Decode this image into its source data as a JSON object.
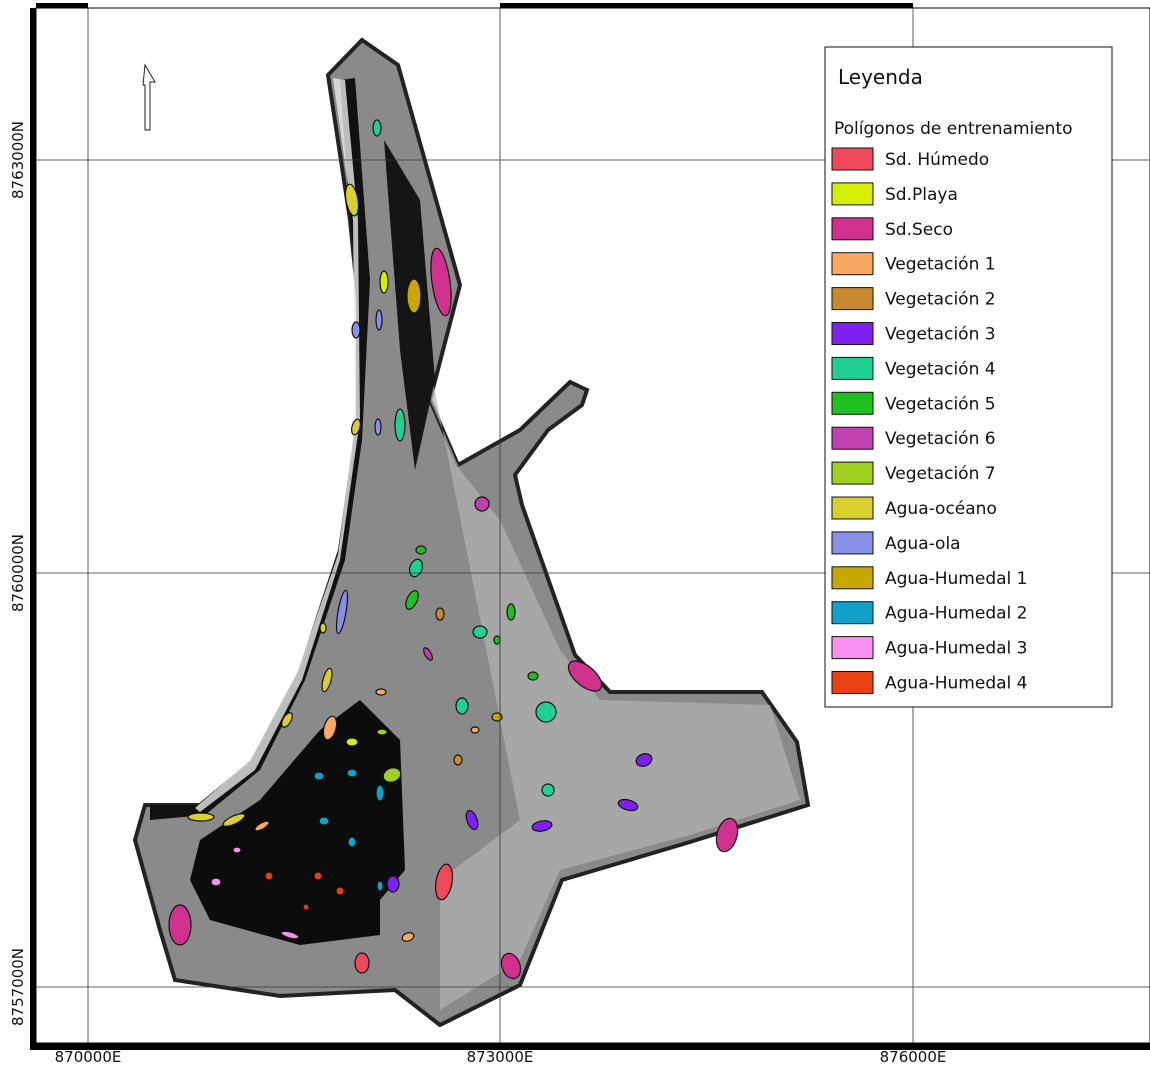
{
  "map": {
    "legend": {
      "title": "Leyenda",
      "subtitle": "Polígonos de entrenamiento",
      "items": [
        {
          "name": "Sd. Húmedo",
          "color": "#f04a5a"
        },
        {
          "name": "Sd.Playa",
          "color": "#d4f000"
        },
        {
          "name": "Sd.Seco",
          "color": "#d0308e"
        },
        {
          "name": "Vegetación 1",
          "color": "#f8a860"
        },
        {
          "name": "Vegetación 2",
          "color": "#c88a30"
        },
        {
          "name": "Vegetación 3",
          "color": "#8020f0"
        },
        {
          "name": "Vegetación 4",
          "color": "#20d090"
        },
        {
          "name": "Vegetación 5",
          "color": "#20c020"
        },
        {
          "name": "Vegetación 6",
          "color": "#c040b0"
        },
        {
          "name": "Vegetación 7",
          "color": "#a0d020"
        },
        {
          "name": "Agua-océano",
          "color": "#d8d030"
        },
        {
          "name": "Agua-ola",
          "color": "#8890e8"
        },
        {
          "name": "Agua-Humedal 1",
          "color": "#c8a800"
        },
        {
          "name": "Agua-Humedal 2",
          "color": "#10a0c8"
        },
        {
          "name": "Agua-Humedal 3",
          "color": "#f890f0"
        },
        {
          "name": "Agua-Humedal 4",
          "color": "#e84010"
        }
      ]
    },
    "x_labels": [
      "870000E",
      "873000E",
      "876000E"
    ],
    "y_labels": [
      "8757000N",
      "8760000N",
      "8763000N"
    ]
  }
}
